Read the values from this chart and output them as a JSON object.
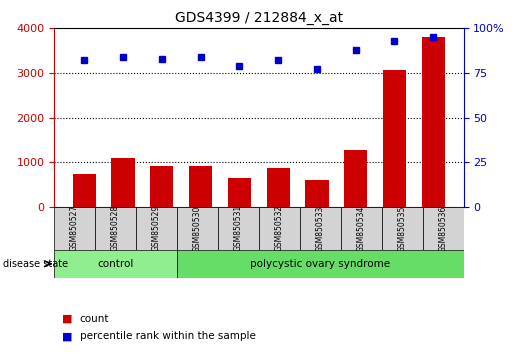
{
  "title": "GDS4399 / 212884_x_at",
  "samples": [
    "GSM850527",
    "GSM850528",
    "GSM850529",
    "GSM850530",
    "GSM850531",
    "GSM850532",
    "GSM850533",
    "GSM850534",
    "GSM850535",
    "GSM850536"
  ],
  "counts": [
    730,
    1100,
    930,
    920,
    660,
    880,
    600,
    1280,
    3060,
    3800
  ],
  "percentiles": [
    82,
    84,
    83,
    84,
    79,
    82,
    77,
    88,
    93,
    95
  ],
  "ylim_left": [
    0,
    4000
  ],
  "ylim_right": [
    0,
    100
  ],
  "yticks_left": [
    0,
    1000,
    2000,
    3000,
    4000
  ],
  "yticks_right": [
    0,
    25,
    50,
    75,
    100
  ],
  "bar_color": "#cc0000",
  "dot_color": "#0000cc",
  "bar_width": 0.6,
  "groups": [
    {
      "label": "control",
      "indices": [
        0,
        1,
        2
      ],
      "color": "#90ee90"
    },
    {
      "label": "polycystic ovary syndrome",
      "indices": [
        3,
        4,
        5,
        6,
        7,
        8,
        9
      ],
      "color": "#66dd66"
    }
  ],
  "disease_state_label": "disease state",
  "legend_bar_label": "count",
  "legend_dot_label": "percentile rank within the sample",
  "bg_color": "#ffffff",
  "plot_bg_color": "#ffffff",
  "grid_color": "#000000",
  "tick_label_color_left": "#cc0000",
  "tick_label_color_right": "#0000cc",
  "sample_bg_color": "#d3d3d3"
}
